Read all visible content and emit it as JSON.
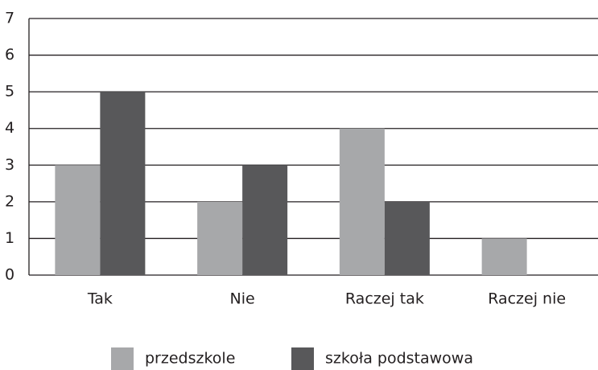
{
  "chart_data": {
    "type": "bar",
    "categories": [
      "Tak",
      "Nie",
      "Raczej tak",
      "Raczej nie"
    ],
    "series": [
      {
        "name": "przedszkole",
        "color": "#a7a8aa",
        "values": [
          3,
          2,
          4,
          1
        ]
      },
      {
        "name": "szkoła podstawowa",
        "color": "#58585a",
        "values": [
          5,
          3,
          2,
          0
        ]
      }
    ],
    "ylim": [
      0,
      7
    ],
    "yticks": [
      0,
      1,
      2,
      3,
      4,
      5,
      6,
      7
    ],
    "grid": true,
    "legend": "bottom"
  }
}
